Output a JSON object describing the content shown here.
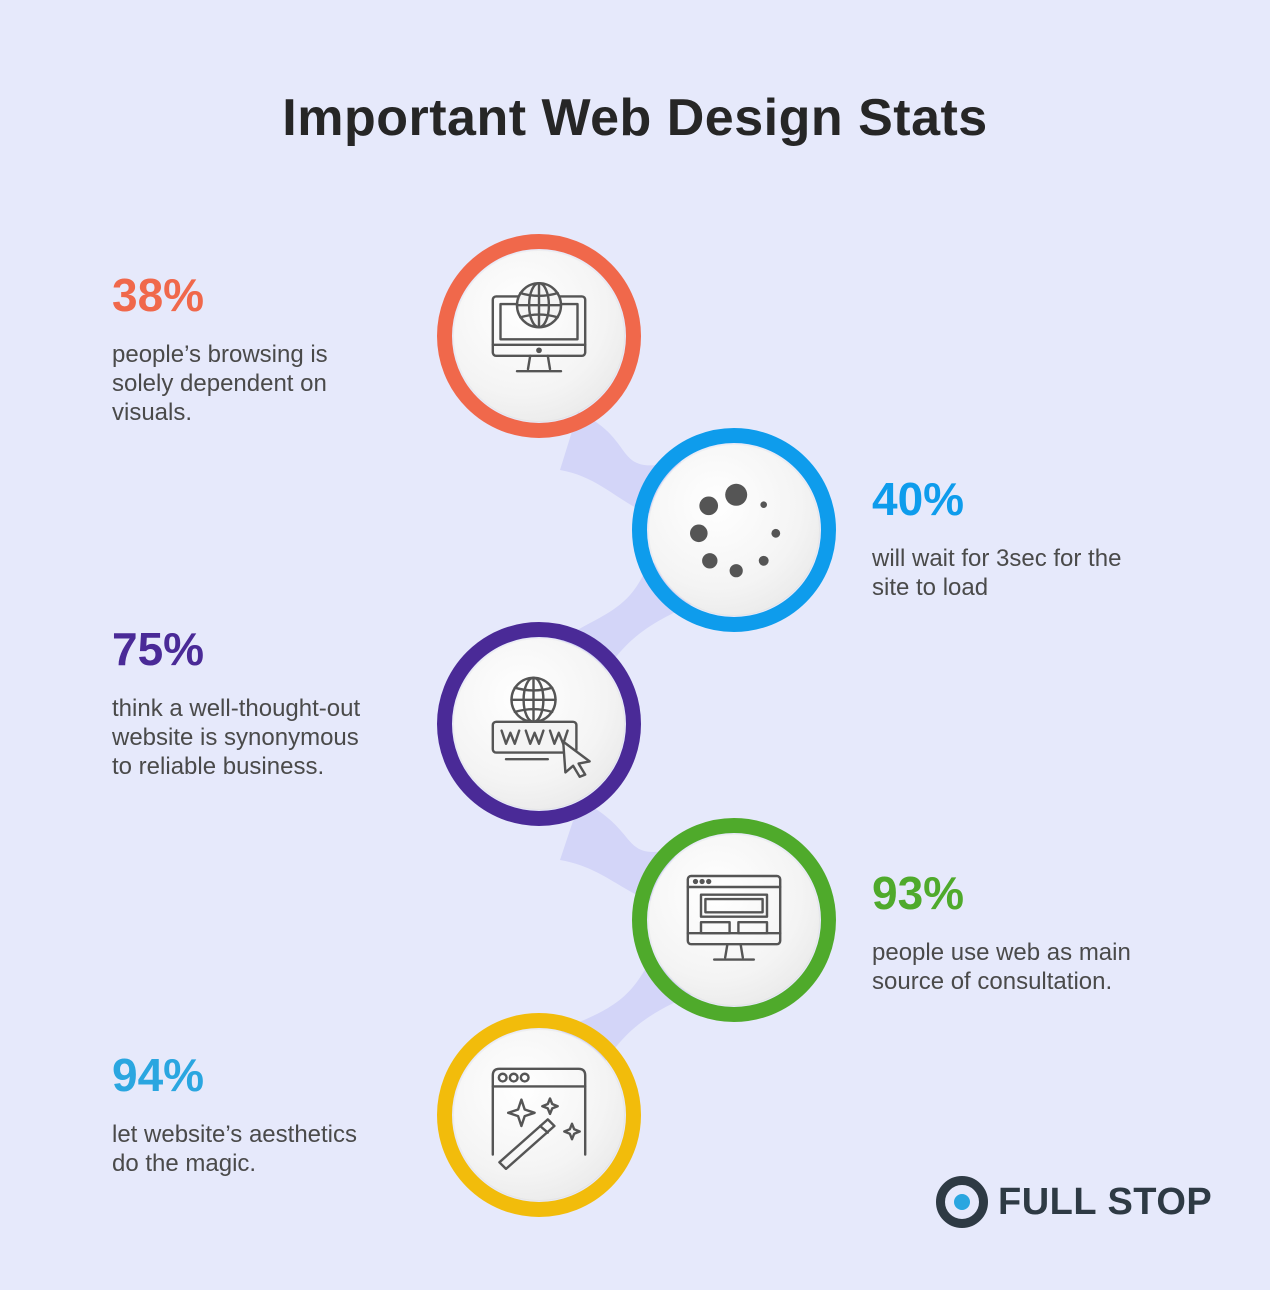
{
  "title": "Important Web Design Stats",
  "stats": [
    {
      "percent": "38%",
      "description": "people’s browsing is\nsolely dependent on\nvisuals.",
      "color": "#f0684b",
      "icon": "monitor-globe-icon"
    },
    {
      "percent": "40%",
      "description": "will wait for 3sec for the\nsite to load",
      "color": "#0e9cec",
      "icon": "loading-spinner-icon"
    },
    {
      "percent": "75%",
      "description": "think a well-thought-out\nwebsite is synonymous\nto reliable business.",
      "color": "#4a2a97",
      "icon": "www-cursor-icon"
    },
    {
      "percent": "93%",
      "description": "people use web as main\nsource of consultation.",
      "color": "#4faa2b",
      "icon": "website-layout-monitor-icon"
    },
    {
      "percent": "94%",
      "description": "let website’s aesthetics\ndo the magic.",
      "color": "#f2bc0b",
      "icon": "magic-wand-browser-icon"
    }
  ],
  "connector_color": "#d3d5f8",
  "logo": {
    "text": "FULL STOP",
    "ring_color": "#2e3a44",
    "dot_color": "#2aa6e0"
  }
}
